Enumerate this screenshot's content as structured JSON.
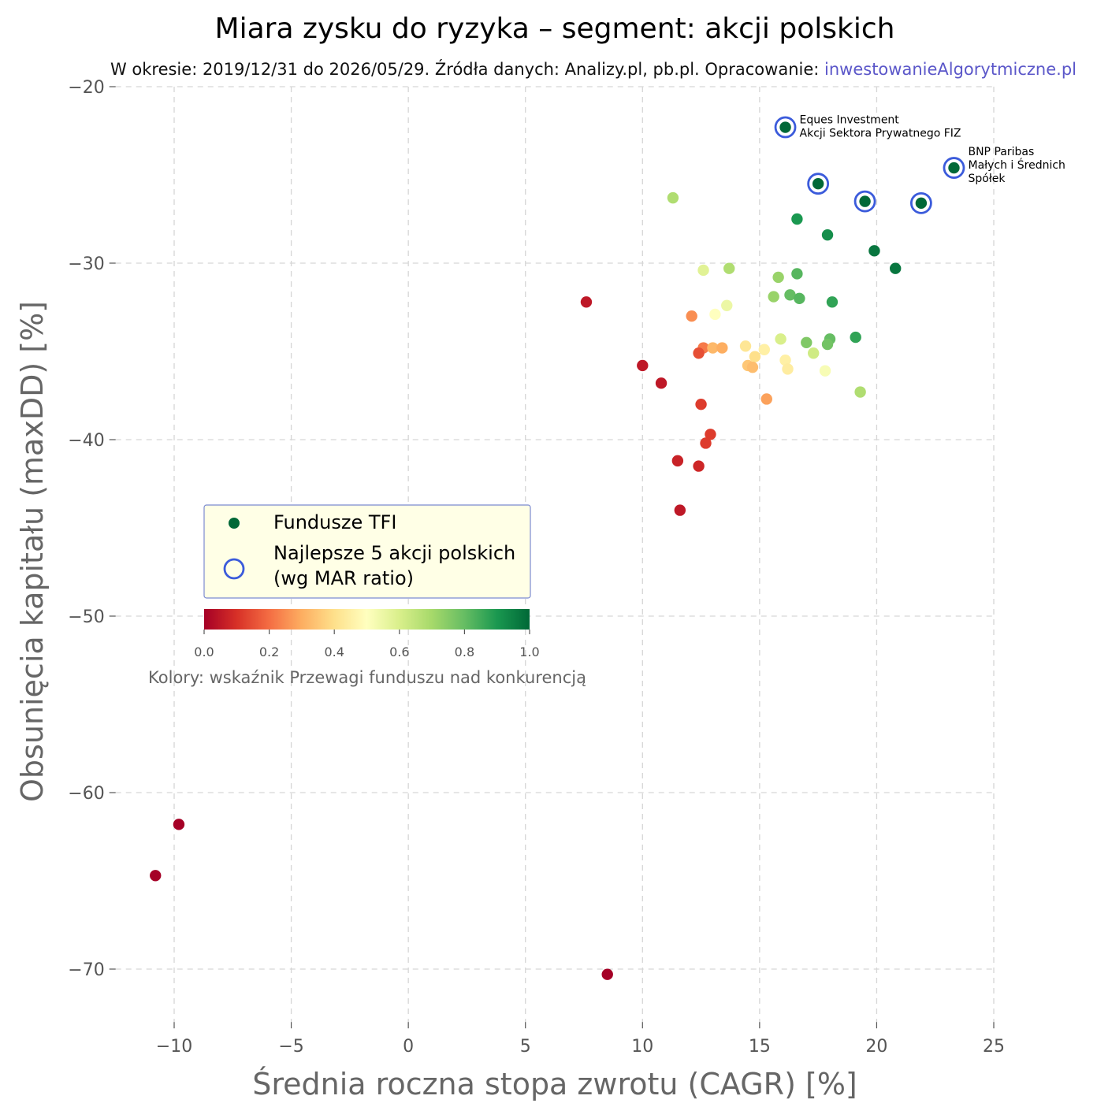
{
  "chart_data": {
    "type": "scatter",
    "title": "Miara zysku do ryzyka – segment: akcji polskich",
    "subtitle_prefix": "W okresie: 2019/12/31 do 2026/05/29. Źródła danych: Analizy.pl, pb.pl. Opracowanie: ",
    "subtitle_site": "inwestowanieAlgorytmiczne.pl",
    "xlabel": "Średnia roczna stopa zwrotu (CAGR) [%]",
    "ylabel": "Obsunięcia kapitału (maxDD) [%]",
    "xlim": [
      -12.5,
      25
    ],
    "ylim": [
      -73,
      -20
    ],
    "x_ticks": [
      -10,
      -5,
      0,
      5,
      10,
      15,
      20,
      25
    ],
    "x_tick_labels": [
      "−10",
      "−5",
      "0",
      "5",
      "10",
      "15",
      "20",
      "25"
    ],
    "y_ticks": [
      -20,
      -30,
      -40,
      -50,
      -60,
      -70
    ],
    "y_tick_labels": [
      "−20",
      "−30",
      "−40",
      "−50",
      "−60",
      "−70"
    ],
    "grid": true,
    "colormap": "RdYlGn",
    "colormap_stops": [
      "#a50026",
      "#d73027",
      "#f46d43",
      "#fdae61",
      "#fee08b",
      "#ffffbf",
      "#d9ef8b",
      "#a6d96a",
      "#66bd63",
      "#1a9850",
      "#006837"
    ],
    "colorbar": {
      "ticks": [
        "0.0",
        "0.2",
        "0.4",
        "0.6",
        "0.8",
        "1.0"
      ],
      "label": "Kolory: wskaźnik Przewagi funduszu nad konkurencją"
    },
    "legend": {
      "position": "center-left",
      "background": "#ffffe6",
      "border": "#7b8ad0",
      "items": [
        "Fundusze TFI",
        "Najlepsze 5 akcji polskich",
        "(wg MAR ratio)"
      ]
    },
    "highlight_color": "#3b5bdb",
    "series": [
      {
        "name": "Fundusze TFI",
        "points": [
          {
            "x": 16.1,
            "y": -22.3,
            "c": 1.0
          },
          {
            "x": 23.3,
            "y": -24.6,
            "c": 1.0
          },
          {
            "x": 17.5,
            "y": -25.5,
            "c": 1.0
          },
          {
            "x": 19.5,
            "y": -26.5,
            "c": 1.0
          },
          {
            "x": 21.9,
            "y": -26.6,
            "c": 1.0
          },
          {
            "x": 11.3,
            "y": -26.3,
            "c": 0.68
          },
          {
            "x": 16.6,
            "y": -27.5,
            "c": 0.9
          },
          {
            "x": 17.9,
            "y": -28.4,
            "c": 0.92
          },
          {
            "x": 19.9,
            "y": -29.3,
            "c": 0.97
          },
          {
            "x": 20.8,
            "y": -30.3,
            "c": 0.97
          },
          {
            "x": 12.6,
            "y": -30.4,
            "c": 0.58
          },
          {
            "x": 13.7,
            "y": -30.3,
            "c": 0.68
          },
          {
            "x": 15.8,
            "y": -30.8,
            "c": 0.72
          },
          {
            "x": 16.6,
            "y": -30.6,
            "c": 0.82
          },
          {
            "x": 15.6,
            "y": -31.9,
            "c": 0.72
          },
          {
            "x": 16.3,
            "y": -31.8,
            "c": 0.8
          },
          {
            "x": 16.7,
            "y": -32.0,
            "c": 0.82
          },
          {
            "x": 18.1,
            "y": -32.2,
            "c": 0.87
          },
          {
            "x": 7.6,
            "y": -32.2,
            "c": 0.05
          },
          {
            "x": 13.6,
            "y": -32.4,
            "c": 0.55
          },
          {
            "x": 13.1,
            "y": -32.9,
            "c": 0.5
          },
          {
            "x": 12.1,
            "y": -33.0,
            "c": 0.25
          },
          {
            "x": 15.9,
            "y": -34.3,
            "c": 0.6
          },
          {
            "x": 17.0,
            "y": -34.5,
            "c": 0.76
          },
          {
            "x": 18.0,
            "y": -34.3,
            "c": 0.8
          },
          {
            "x": 19.1,
            "y": -34.2,
            "c": 0.87
          },
          {
            "x": 17.9,
            "y": -34.6,
            "c": 0.78
          },
          {
            "x": 14.4,
            "y": -34.7,
            "c": 0.42
          },
          {
            "x": 12.6,
            "y": -34.8,
            "c": 0.22
          },
          {
            "x": 13.0,
            "y": -34.8,
            "c": 0.32
          },
          {
            "x": 13.4,
            "y": -34.8,
            "c": 0.3
          },
          {
            "x": 12.4,
            "y": -35.1,
            "c": 0.15
          },
          {
            "x": 15.2,
            "y": -34.9,
            "c": 0.45
          },
          {
            "x": 17.3,
            "y": -35.1,
            "c": 0.62
          },
          {
            "x": 14.8,
            "y": -35.3,
            "c": 0.4
          },
          {
            "x": 16.1,
            "y": -35.5,
            "c": 0.45
          },
          {
            "x": 14.5,
            "y": -35.8,
            "c": 0.35
          },
          {
            "x": 14.7,
            "y": -35.9,
            "c": 0.33
          },
          {
            "x": 16.2,
            "y": -36.0,
            "c": 0.44
          },
          {
            "x": 17.8,
            "y": -36.1,
            "c": 0.52
          },
          {
            "x": 10.0,
            "y": -35.8,
            "c": 0.05
          },
          {
            "x": 10.8,
            "y": -36.8,
            "c": 0.05
          },
          {
            "x": 19.3,
            "y": -37.3,
            "c": 0.68
          },
          {
            "x": 15.3,
            "y": -37.7,
            "c": 0.28
          },
          {
            "x": 12.5,
            "y": -38.0,
            "c": 0.12
          },
          {
            "x": 12.9,
            "y": -39.7,
            "c": 0.12
          },
          {
            "x": 12.7,
            "y": -40.2,
            "c": 0.12
          },
          {
            "x": 11.5,
            "y": -41.2,
            "c": 0.07
          },
          {
            "x": 12.4,
            "y": -41.5,
            "c": 0.08
          },
          {
            "x": 11.6,
            "y": -44.0,
            "c": 0.05
          },
          {
            "x": -9.8,
            "y": -61.8,
            "c": 0.0
          },
          {
            "x": -10.8,
            "y": -64.7,
            "c": 0.0
          },
          {
            "x": 8.5,
            "y": -70.3,
            "c": 0.0
          }
        ]
      },
      {
        "name": "Najlepsze 5 akcji polskich",
        "points": [
          {
            "x": 16.1,
            "y": -22.3
          },
          {
            "x": 23.3,
            "y": -24.6
          },
          {
            "x": 17.5,
            "y": -25.5
          },
          {
            "x": 19.5,
            "y": -26.5
          },
          {
            "x": 21.9,
            "y": -26.6
          }
        ]
      }
    ],
    "annotations": [
      {
        "x": 16.1,
        "y": -22.3,
        "lines": [
          "Eques Investment",
          " Akcji Sektora Prywatnego FIZ"
        ]
      },
      {
        "x": 23.3,
        "y": -24.6,
        "lines": [
          "BNP Paribas",
          "  Małych i Średnich",
          "  Spółek"
        ]
      }
    ]
  }
}
